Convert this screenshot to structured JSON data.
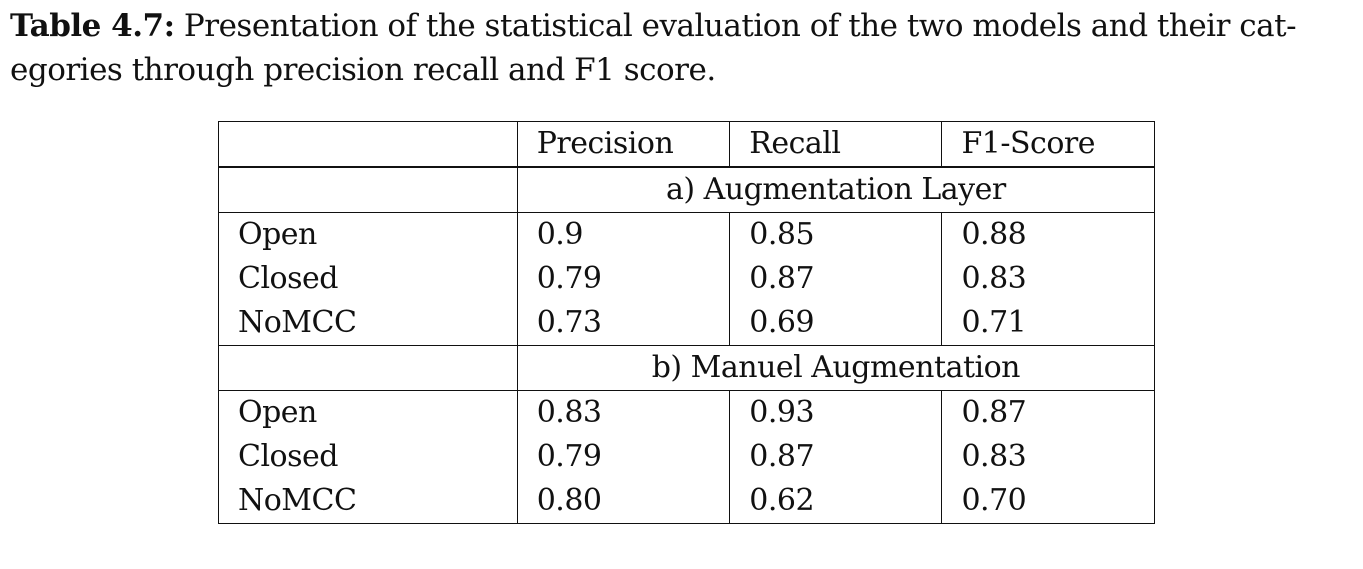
{
  "caption": {
    "label": "Table 4.7:",
    "line1": "Presentation of the statistical evaluation of the two models and their cat-",
    "line2": "egories through precision recall and F1 score."
  },
  "table": {
    "headers": [
      "",
      "Precision",
      "Recall",
      "F1-Score"
    ],
    "sections": [
      {
        "title": "a) Augmentation Layer",
        "rows": [
          {
            "category": "Open",
            "precision": "0.9",
            "recall": "0.85",
            "f1": "0.88"
          },
          {
            "category": "Closed",
            "precision": "0.79",
            "recall": "0.87",
            "f1": "0.83"
          },
          {
            "category": "NoMCC",
            "precision": "0.73",
            "recall": "0.69",
            "f1": "0.71"
          }
        ]
      },
      {
        "title": "b) Manuel Augmentation",
        "rows": [
          {
            "category": "Open",
            "precision": "0.83",
            "recall": "0.93",
            "f1": "0.87"
          },
          {
            "category": "Closed",
            "precision": "0.79",
            "recall": "0.87",
            "f1": "0.83"
          },
          {
            "category": "NoMCC",
            "precision": "0.80",
            "recall": "0.62",
            "f1": "0.70"
          }
        ]
      }
    ]
  }
}
